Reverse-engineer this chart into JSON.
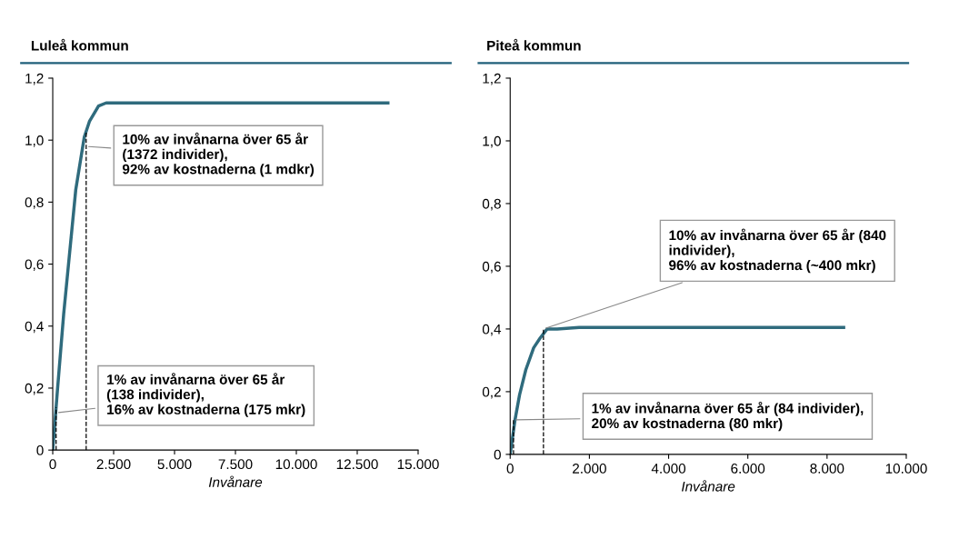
{
  "chart_data": [
    {
      "type": "line",
      "title": "Luleå kommun",
      "xlabel": "Invånare",
      "series": [
        {
          "color": "#2f6b7d",
          "x": [
            0,
            200,
            450,
            735,
            945,
            1295,
            1505,
            1880,
            2190,
            13760
          ],
          "values": [
            0,
            0.2,
            0.44,
            0.67,
            0.84,
            1.01,
            1.06,
            1.11,
            1.12,
            1.12
          ]
        }
      ],
      "xlim": [
        0,
        15000
      ],
      "xticks": [
        0,
        {
          "value": 2500,
          "label": "2.500"
        },
        {
          "value": 5000,
          "label": "5.000"
        },
        {
          "value": 7500,
          "label": "7.500"
        },
        {
          "value": 10000,
          "label": "10.000"
        },
        {
          "value": 12500,
          "label": "12.500"
        },
        {
          "value": 15000,
          "label": "15.000"
        }
      ],
      "ylim": [
        0,
        1.2
      ],
      "yticks": [
        0,
        {
          "value": 0.2,
          "label": "0,2"
        },
        {
          "value": 0.4,
          "label": "0,4"
        },
        {
          "value": 0.6,
          "label": "0,6"
        },
        {
          "value": 0.8,
          "label": "0,8"
        },
        {
          "value": 1.0,
          "label": "1,0"
        },
        {
          "value": 1.2,
          "label": "1,2"
        }
      ],
      "ref_lines": [
        {
          "axis": "x",
          "value": 138,
          "line_style": "dashed",
          "color": "#000000"
        },
        {
          "axis": "x",
          "value": 1372,
          "line_style": "dashed",
          "color": "#000000"
        }
      ],
      "annotations": [
        {
          "text": "10% av invånarna över 65 år\n(1372 individer),\n92% av kostnaderna (1 mdkr)",
          "x": 1372,
          "y": 0.98
        },
        {
          "text": "1% av invånarna över 65 år\n(138 individer),\n16% av kostnaderna (175 mkr)",
          "x": 138,
          "y": 0.12
        }
      ],
      "grid": false,
      "legend": false,
      "marker": "none",
      "line_style": "solid"
    },
    {
      "type": "line",
      "title": "Piteå kommun",
      "xlabel": "Invånare",
      "series": [
        {
          "color": "#2f6b7d",
          "x": [
            0,
            119,
            237,
            395,
            593,
            751,
            933,
            1186,
            1740,
            8420
          ],
          "values": [
            0,
            0.108,
            0.19,
            0.27,
            0.34,
            0.37,
            0.4,
            0.4,
            0.405,
            0.405
          ]
        }
      ],
      "xlim": [
        0,
        10000
      ],
      "xticks": [
        0,
        {
          "value": 2000,
          "label": "2.000"
        },
        {
          "value": 4000,
          "label": "4.000"
        },
        {
          "value": 6000,
          "label": "6.000"
        },
        {
          "value": 8000,
          "label": "8.000"
        },
        {
          "value": 10000,
          "label": "10.000"
        }
      ],
      "ylim": [
        0,
        1.2
      ],
      "yticks": [
        0,
        {
          "value": 0.2,
          "label": "0,2"
        },
        {
          "value": 0.4,
          "label": "0,4"
        },
        {
          "value": 0.6,
          "label": "0,6"
        },
        {
          "value": 0.8,
          "label": "0,8"
        },
        {
          "value": 1.0,
          "label": "1,0"
        },
        {
          "value": 1.2,
          "label": "1,2"
        }
      ],
      "ref_lines": [
        {
          "axis": "x",
          "value": 84,
          "line_style": "dashed",
          "color": "#000000"
        },
        {
          "axis": "x",
          "value": 840,
          "line_style": "dashed",
          "color": "#000000"
        }
      ],
      "annotations": [
        {
          "text": "10% av invånarna över 65 år (840\nindivider),\n96% av kostnaderna (~400 mkr)",
          "x": 840,
          "y": 0.4
        },
        {
          "text": "1% av invånarna över 65 år (84 individer),\n20% av kostnaderna (80 mkr)",
          "x": 84,
          "y": 0.11
        }
      ],
      "grid": false,
      "legend": false,
      "marker": "none",
      "line_style": "solid"
    }
  ]
}
